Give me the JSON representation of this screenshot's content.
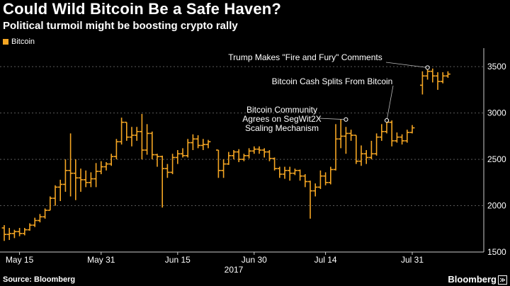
{
  "header": {
    "title": "Could Wild Bitcoin Be a Safe Haven?",
    "subtitle": "Political turmoil might be boosting crypto rally"
  },
  "footer": {
    "source": "Source: Bloomberg",
    "brand": "Bloomberg",
    "brand_icon": "≫"
  },
  "colors": {
    "background": "#000000",
    "series": "#f5a623",
    "annotation": "#bdbdbd",
    "axis_text": "#ffffff"
  },
  "chart_data": {
    "type": "ohlc",
    "title": "Could Wild Bitcoin Be a Safe Haven?",
    "subtitle": "Political turmoil might be boosting crypto rally",
    "legend": {
      "label": "Bitcoin",
      "position": "top-left"
    },
    "x_axis": {
      "ticks": [
        {
          "day": 3,
          "label": "May 15"
        },
        {
          "day": 19,
          "label": "May 31"
        },
        {
          "day": 34,
          "label": "Jun 15"
        },
        {
          "day": 49,
          "label": "Jun 30"
        },
        {
          "day": 63,
          "label": "Jul 14"
        },
        {
          "day": 80,
          "label": "Jul 31"
        }
      ],
      "year_label": "2017",
      "year_day": 45
    },
    "y_axis": {
      "range": [
        1500,
        3700
      ],
      "ticks": [
        1500,
        2000,
        2500,
        3000,
        3500
      ],
      "position": "right",
      "dashed_gridlines": true
    },
    "series": [
      {
        "name": "Bitcoin",
        "bars": [
          {
            "day": 0,
            "open": 1760,
            "high": 1790,
            "low": 1620,
            "close": 1690
          },
          {
            "day": 1,
            "open": 1690,
            "high": 1760,
            "low": 1630,
            "close": 1700
          },
          {
            "day": 2,
            "open": 1700,
            "high": 1740,
            "low": 1650,
            "close": 1720
          },
          {
            "day": 3,
            "open": 1720,
            "high": 1760,
            "low": 1670,
            "close": 1700
          },
          {
            "day": 4,
            "open": 1700,
            "high": 1760,
            "low": 1680,
            "close": 1740
          },
          {
            "day": 5,
            "open": 1740,
            "high": 1810,
            "low": 1730,
            "close": 1790
          },
          {
            "day": 6,
            "open": 1790,
            "high": 1870,
            "low": 1770,
            "close": 1840
          },
          {
            "day": 7,
            "open": 1840,
            "high": 1910,
            "low": 1820,
            "close": 1880
          },
          {
            "day": 8,
            "open": 1880,
            "high": 1970,
            "low": 1860,
            "close": 1950
          },
          {
            "day": 9,
            "open": 1950,
            "high": 2100,
            "low": 1950,
            "close": 2080
          },
          {
            "day": 10,
            "open": 2080,
            "high": 2220,
            "low": 2000,
            "close": 2200
          },
          {
            "day": 11,
            "open": 2200,
            "high": 2280,
            "low": 2050,
            "close": 2230
          },
          {
            "day": 12,
            "open": 2230,
            "high": 2500,
            "low": 2150,
            "close": 2380
          },
          {
            "day": 13,
            "open": 2380,
            "high": 2780,
            "low": 2100,
            "close": 2350
          },
          {
            "day": 14,
            "open": 2350,
            "high": 2500,
            "low": 2060,
            "close": 2300
          },
          {
            "day": 15,
            "open": 2300,
            "high": 2400,
            "low": 2150,
            "close": 2280
          },
          {
            "day": 16,
            "open": 2280,
            "high": 2380,
            "low": 2200,
            "close": 2250
          },
          {
            "day": 17,
            "open": 2250,
            "high": 2360,
            "low": 2200,
            "close": 2290
          },
          {
            "day": 18,
            "open": 2290,
            "high": 2460,
            "low": 2200,
            "close": 2370
          },
          {
            "day": 19,
            "open": 2370,
            "high": 2480,
            "low": 2340,
            "close": 2420
          },
          {
            "day": 20,
            "open": 2420,
            "high": 2470,
            "low": 2380,
            "close": 2450
          },
          {
            "day": 21,
            "open": 2450,
            "high": 2560,
            "low": 2430,
            "close": 2530
          },
          {
            "day": 22,
            "open": 2530,
            "high": 2720,
            "low": 2500,
            "close": 2690
          },
          {
            "day": 23,
            "open": 2690,
            "high": 2950,
            "low": 2660,
            "close": 2900
          },
          {
            "day": 24,
            "open": 2900,
            "high": 2900,
            "low": 2700,
            "close": 2740
          },
          {
            "day": 25,
            "open": 2740,
            "high": 2850,
            "low": 2640,
            "close": 2760
          },
          {
            "day": 26,
            "open": 2760,
            "high": 2850,
            "low": 2700,
            "close": 2800
          },
          {
            "day": 27,
            "open": 2800,
            "high": 2990,
            "low": 2500,
            "close": 2600
          },
          {
            "day": 28,
            "open": 2600,
            "high": 2880,
            "low": 2550,
            "close": 2780
          },
          {
            "day": 29,
            "open": 2780,
            "high": 2800,
            "low": 2500,
            "close": 2550
          },
          {
            "day": 30,
            "open": 2550,
            "high": 2560,
            "low": 2420,
            "close": 2530
          },
          {
            "day": 31,
            "open": 2530,
            "high": 2540,
            "low": 1980,
            "close": 2400
          },
          {
            "day": 32,
            "open": 2400,
            "high": 2450,
            "low": 2300,
            "close": 2360
          },
          {
            "day": 33,
            "open": 2360,
            "high": 2560,
            "low": 2340,
            "close": 2520
          },
          {
            "day": 34,
            "open": 2520,
            "high": 2600,
            "low": 2450,
            "close": 2560
          },
          {
            "day": 35,
            "open": 2560,
            "high": 2620,
            "low": 2520,
            "close": 2540
          },
          {
            "day": 36,
            "open": 2540,
            "high": 2720,
            "low": 2520,
            "close": 2680
          },
          {
            "day": 37,
            "open": 2680,
            "high": 2770,
            "low": 2600,
            "close": 2720
          },
          {
            "day": 38,
            "open": 2720,
            "high": 2760,
            "low": 2620,
            "close": 2650
          },
          {
            "day": 39,
            "open": 2650,
            "high": 2720,
            "low": 2600,
            "close": 2660
          },
          {
            "day": 40,
            "open": 2660,
            "high": 2710,
            "low": 2620,
            "close": 2690
          },
          {
            "day": 42,
            "open": 2600,
            "high": 2600,
            "low": 2300,
            "close": 2380
          },
          {
            "day": 43,
            "open": 2380,
            "high": 2500,
            "low": 2300,
            "close": 2450
          },
          {
            "day": 44,
            "open": 2450,
            "high": 2580,
            "low": 2440,
            "close": 2540
          },
          {
            "day": 45,
            "open": 2540,
            "high": 2600,
            "low": 2500,
            "close": 2580
          },
          {
            "day": 46,
            "open": 2580,
            "high": 2610,
            "low": 2470,
            "close": 2500
          },
          {
            "day": 47,
            "open": 2500,
            "high": 2560,
            "low": 2480,
            "close": 2540
          },
          {
            "day": 48,
            "open": 2540,
            "high": 2620,
            "low": 2510,
            "close": 2590
          },
          {
            "day": 49,
            "open": 2590,
            "high": 2640,
            "low": 2560,
            "close": 2610
          },
          {
            "day": 50,
            "open": 2610,
            "high": 2640,
            "low": 2560,
            "close": 2600
          },
          {
            "day": 51,
            "open": 2600,
            "high": 2620,
            "low": 2520,
            "close": 2580
          },
          {
            "day": 52,
            "open": 2580,
            "high": 2600,
            "low": 2480,
            "close": 2510
          },
          {
            "day": 53,
            "open": 2510,
            "high": 2520,
            "low": 2380,
            "close": 2400
          },
          {
            "day": 54,
            "open": 2400,
            "high": 2420,
            "low": 2300,
            "close": 2340
          },
          {
            "day": 55,
            "open": 2340,
            "high": 2420,
            "low": 2290,
            "close": 2380
          },
          {
            "day": 56,
            "open": 2380,
            "high": 2420,
            "low": 2270,
            "close": 2350
          },
          {
            "day": 57,
            "open": 2350,
            "high": 2400,
            "low": 2330,
            "close": 2380
          },
          {
            "day": 58,
            "open": 2380,
            "high": 2390,
            "low": 2270,
            "close": 2320
          },
          {
            "day": 59,
            "open": 2320,
            "high": 2340,
            "low": 2200,
            "close": 2260
          },
          {
            "day": 60,
            "open": 2260,
            "high": 2270,
            "low": 1860,
            "close": 2160
          },
          {
            "day": 61,
            "open": 2160,
            "high": 2240,
            "low": 2100,
            "close": 2200
          },
          {
            "day": 62,
            "open": 2200,
            "high": 2380,
            "low": 2180,
            "close": 2320
          },
          {
            "day": 63,
            "open": 2320,
            "high": 2360,
            "low": 2220,
            "close": 2250
          },
          {
            "day": 64,
            "open": 2250,
            "high": 2420,
            "low": 2230,
            "close": 2390
          },
          {
            "day": 65,
            "open": 2390,
            "high": 2880,
            "low": 2380,
            "close": 2720
          },
          {
            "day": 66,
            "open": 2720,
            "high": 2930,
            "low": 2620,
            "close": 2750
          },
          {
            "day": 67,
            "open": 2750,
            "high": 2850,
            "low": 2560,
            "close": 2780
          },
          {
            "day": 68,
            "open": 2780,
            "high": 2820,
            "low": 2700,
            "close": 2760
          },
          {
            "day": 69,
            "open": 2760,
            "high": 2760,
            "low": 2450,
            "close": 2480
          },
          {
            "day": 70,
            "open": 2480,
            "high": 2650,
            "low": 2430,
            "close": 2560
          },
          {
            "day": 71,
            "open": 2560,
            "high": 2600,
            "low": 2450,
            "close": 2520
          },
          {
            "day": 72,
            "open": 2520,
            "high": 2700,
            "low": 2500,
            "close": 2560
          },
          {
            "day": 73,
            "open": 2560,
            "high": 2780,
            "low": 2540,
            "close": 2740
          },
          {
            "day": 74,
            "open": 2740,
            "high": 2880,
            "low": 2700,
            "close": 2800
          },
          {
            "day": 75,
            "open": 2800,
            "high": 2920,
            "low": 2780,
            "close": 2900
          },
          {
            "day": 76,
            "open": 2900,
            "high": 2920,
            "low": 2640,
            "close": 2700
          },
          {
            "day": 77,
            "open": 2700,
            "high": 2790,
            "low": 2680,
            "close": 2740
          },
          {
            "day": 78,
            "open": 2740,
            "high": 2770,
            "low": 2660,
            "close": 2700
          },
          {
            "day": 79,
            "open": 2700,
            "high": 2820,
            "low": 2680,
            "close": 2790
          },
          {
            "day": 80,
            "open": 2790,
            "high": 2870,
            "low": 2780,
            "close": 2840
          },
          {
            "day": 82,
            "open": 3300,
            "high": 3450,
            "low": 3200,
            "close": 3400
          },
          {
            "day": 83,
            "open": 3400,
            "high": 3490,
            "low": 3360,
            "close": 3450
          },
          {
            "day": 84,
            "open": 3450,
            "high": 3480,
            "low": 3330,
            "close": 3400
          },
          {
            "day": 85,
            "open": 3400,
            "high": 3440,
            "low": 3250,
            "close": 3340
          },
          {
            "day": 86,
            "open": 3340,
            "high": 3440,
            "low": 3320,
            "close": 3400
          },
          {
            "day": 87,
            "open": 3400,
            "high": 3450,
            "low": 3380,
            "close": 3420
          }
        ]
      }
    ],
    "annotations": [
      {
        "text_lines": [
          "Trump Makes \"Fire and Fury\" Comments"
        ],
        "day": 83,
        "value": 3490
      },
      {
        "text_lines": [
          "Bitcoin Cash Splits From Bitcoin"
        ],
        "day": 75,
        "value": 2920
      },
      {
        "text_lines": [
          "Bitcoin Community",
          "Agrees on SegWit2X",
          "Scaling Mechanism"
        ],
        "day": 67,
        "value": 2930
      }
    ]
  }
}
